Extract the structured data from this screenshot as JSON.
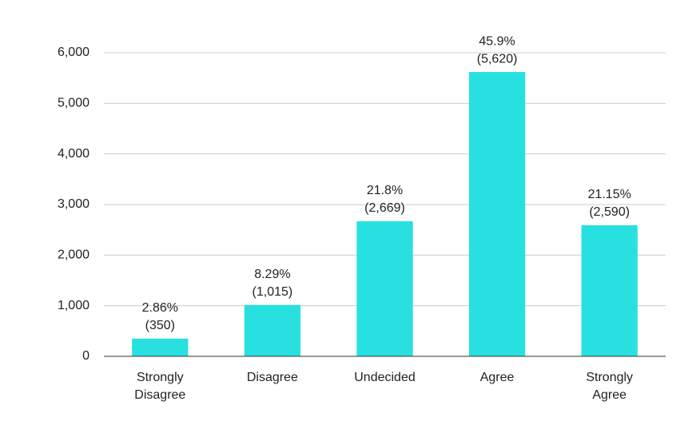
{
  "chart_data": {
    "type": "bar",
    "categories": [
      "Strongly Disagree",
      "Disagree",
      "Undecided",
      "Agree",
      "Strongly Agree"
    ],
    "values": [
      350,
      1015,
      2669,
      5620,
      2590
    ],
    "value_labels": [
      "(350)",
      "(1,015)",
      "(2,669)",
      "(5,620)",
      "(2,590)"
    ],
    "percent_labels": [
      "2.86%",
      "8.29%",
      "21.8%",
      "45.9%",
      "21.15%"
    ],
    "color": "#29e0e0",
    "ylim": [
      0,
      6000
    ],
    "yticks": [
      0,
      {
        "value": 1000,
        "label": "1,000"
      },
      {
        "value": 2000,
        "label": "2,000"
      },
      {
        "value": 3000,
        "label": "3,000"
      },
      {
        "value": 4000,
        "label": "4,000"
      },
      {
        "value": 5000,
        "label": "5,000"
      },
      {
        "value": 6000,
        "label": "6,000"
      }
    ],
    "grid": true
  }
}
